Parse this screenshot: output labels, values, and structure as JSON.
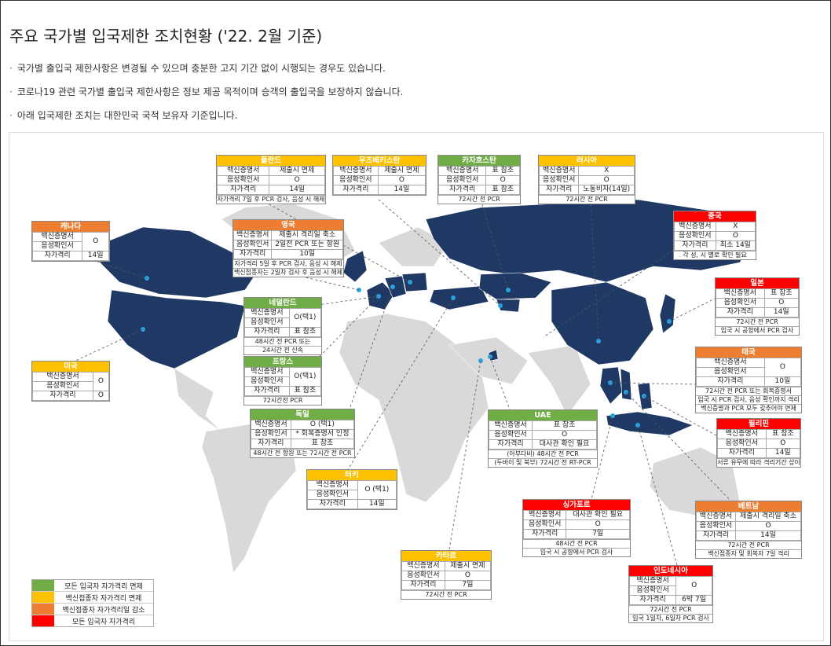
{
  "title": "주요 국가별 입국제한 조치현황 ('22. 2월 기준)",
  "notes": [
    "국가별 출입국 제한사항은 변경될 수 있으며 충분한 고지 기간 없이 시행되는 경우도 있습니다.",
    "코로나19 관련 국가별 출입국 제한사항은 정보 제공 목적이며 승객의 출입국을 보장하지 않습니다.",
    "아래 입국제한 조치는 대한민국 국적 보유자 기준입니다."
  ],
  "note_bullet": "·",
  "colors": {
    "green": "#70ad47",
    "yellow": "#ffc000",
    "orange": "#ed7d31",
    "red": "#ff0000",
    "land": "#1f3864",
    "land_light": "#d9d9d9"
  },
  "countries": {
    "poland": {
      "name": "폴란드",
      "color": "yellow",
      "rows": [
        [
          "백신증명서",
          "제출시 면제"
        ],
        [
          "음성확인서",
          "O"
        ],
        [
          "자가격리",
          "14일"
        ]
      ],
      "foot": [
        "자가격리 7일 후 PCR 검사, 음성 시 해제"
      ]
    },
    "uzbekistan": {
      "name": "우즈베키스탄",
      "color": "yellow",
      "rows": [
        [
          "백신증명서",
          "제출시 면제"
        ],
        [
          "음성확인서",
          "O"
        ],
        [
          "자가격리",
          "14일"
        ]
      ],
      "foot": []
    },
    "kazakhstan": {
      "name": "카자흐스탄",
      "color": "green",
      "rows": [
        [
          "백신증명서",
          "표 참조"
        ],
        [
          "음성확인서",
          "O"
        ],
        [
          "자가격리",
          "표 참조"
        ]
      ],
      "foot": [
        "72시간 전 PCR"
      ]
    },
    "russia": {
      "name": "러시아",
      "color": "yellow",
      "rows": [
        [
          "백신증명서",
          "X"
        ],
        [
          "음성확인서",
          "O"
        ],
        [
          "자가격리",
          "노동비자(14일)"
        ]
      ],
      "foot": [
        "72시간 전 PCR"
      ]
    },
    "canada": {
      "name": "캐나다",
      "color": "orange",
      "rows": [
        [
          "백신증명서",
          "O"
        ],
        [
          "음성확인서",
          ""
        ],
        [
          "자가격리",
          "14일"
        ]
      ],
      "foot": []
    },
    "uk": {
      "name": "영국",
      "color": "orange",
      "rows": [
        [
          "백신증명서",
          "제출시 격리일 축소"
        ],
        [
          "음성확인서",
          "2일전 PCR 또는 항원"
        ],
        [
          "자가격리",
          "10일"
        ]
      ],
      "foot": [
        "자가격리 5일 후 PCR 검사, 음성 시 해제",
        "백신접종자는 2일차 검사 후 음성 시 해제"
      ]
    },
    "china": {
      "name": "중국",
      "color": "red",
      "rows": [
        [
          "백신증명서",
          "X"
        ],
        [
          "음성확인서",
          "O"
        ],
        [
          "자가격리",
          "최소 14일"
        ]
      ],
      "foot": [
        "각 성, 시 별로 확인 필요"
      ]
    },
    "japan": {
      "name": "일본",
      "color": "red",
      "rows": [
        [
          "백신증명서",
          "표 참조"
        ],
        [
          "음성확인서",
          "O"
        ],
        [
          "자가격리",
          "14일"
        ]
      ],
      "foot": [
        "72시간 전 PCR",
        "입국 시 공항에서 PCR 검사"
      ]
    },
    "netherlands": {
      "name": "네덜란드",
      "color": "green",
      "rows": [
        [
          "백신증명서",
          "O(택1)"
        ],
        [
          "음성확인서",
          ""
        ],
        [
          "자가격리",
          "표 참조"
        ]
      ],
      "foot": [
        "48시간 전 PCR 또는",
        "24시간 전 신속"
      ]
    },
    "thailand": {
      "name": "태국",
      "color": "orange",
      "rows": [
        [
          "백신증명서",
          "O"
        ],
        [
          "음성확인서",
          ""
        ],
        [
          "자가격리",
          "10일"
        ]
      ],
      "foot": [
        "72시간 전 PCR 또는 회복증명서",
        "입국 시 PCR 검사, 음성 확인까지 격리",
        "백신증명과 PCR 모두 갖추어야 면제"
      ]
    },
    "usa": {
      "name": "미국",
      "color": "yellow",
      "rows": [
        [
          "백신증명서",
          "O"
        ],
        [
          "음성확인서",
          "O"
        ],
        [
          "자가격리",
          "O"
        ]
      ],
      "foot": []
    },
    "france": {
      "name": "프랑스",
      "color": "green",
      "rows": [
        [
          "백신증명서",
          "O(택1)"
        ],
        [
          "음성확인서",
          ""
        ],
        [
          "자가격리",
          "표 참조"
        ]
      ],
      "foot": [
        "72시간전 PCR"
      ]
    },
    "germany": {
      "name": "독일",
      "color": "green",
      "rows": [
        [
          "백신증명서",
          "O (택1)"
        ],
        [
          "음성확인서",
          "* 회복증명서 인정"
        ],
        [
          "자가격리",
          "표 참조"
        ]
      ],
      "foot": [
        "48시간 전 항원 또는 72시간 전 PCR"
      ]
    },
    "uae": {
      "name": "UAE",
      "color": "green",
      "rows": [
        [
          "백신증명서",
          "표 참조"
        ],
        [
          "음성확인서",
          "O"
        ],
        [
          "자가격리",
          "대사관 확인 필요"
        ]
      ],
      "foot": [
        "(아부다비) 48시간 전 PCR",
        "(두바이 및 북부) 72시간 전 RT-PCR"
      ]
    },
    "philippines": {
      "name": "필리핀",
      "color": "red",
      "rows": [
        [
          "백신증명서",
          "표 참조"
        ],
        [
          "음성확인서",
          "O"
        ],
        [
          "자가격리",
          "14일"
        ]
      ],
      "foot": [
        "서류 유무에 따라 격리기간 상이"
      ]
    },
    "turkey": {
      "name": "터키",
      "color": "yellow",
      "rows": [
        [
          "백신증명서",
          "O (택1)"
        ],
        [
          "음성확인서",
          ""
        ],
        [
          "자가격리",
          "14일"
        ]
      ],
      "foot": []
    },
    "singapore": {
      "name": "싱가포르",
      "color": "red",
      "rows": [
        [
          "백신증명서",
          "대사관 확인 필요"
        ],
        [
          "음성확인서",
          "O"
        ],
        [
          "자가격리",
          "7일"
        ]
      ],
      "foot": [
        "48시간 전 PCR",
        "입국 시 공항에서 PCR 검사"
      ]
    },
    "vietnam": {
      "name": "베트남",
      "color": "orange",
      "rows": [
        [
          "백신증명서",
          "제출시 격리일 축소"
        ],
        [
          "음성확인서",
          "O"
        ],
        [
          "자가격리",
          "14일"
        ]
      ],
      "foot": [
        "72시간 전 PCR",
        "백신접종자 및 회복자 7일 격리"
      ]
    },
    "qatar": {
      "name": "카타르",
      "color": "yellow",
      "rows": [
        [
          "백신증명서",
          "제출시 면제"
        ],
        [
          "음성확인서",
          "O"
        ],
        [
          "자가격리",
          "7일"
        ]
      ],
      "foot": [
        "72시간 전 PCR"
      ]
    },
    "indonesia": {
      "name": "인도네시아",
      "color": "red",
      "rows": [
        [
          "백신증명서",
          "O"
        ],
        [
          "음성확인서",
          ""
        ],
        [
          "자가격리",
          "6박 7일"
        ]
      ],
      "foot": [
        "72시간 전 PCR",
        "입국 1일차, 6일차 PCR 검사"
      ]
    }
  },
  "legend": [
    {
      "color": "green",
      "label": "모든 입국자 자가격리 면제"
    },
    {
      "color": "yellow",
      "label": "백신접종자 자가격리 면제"
    },
    {
      "color": "orange",
      "label": "백신접종자 자가격리일 감소"
    },
    {
      "color": "red",
      "label": "모든 입국자 자가격리"
    }
  ]
}
